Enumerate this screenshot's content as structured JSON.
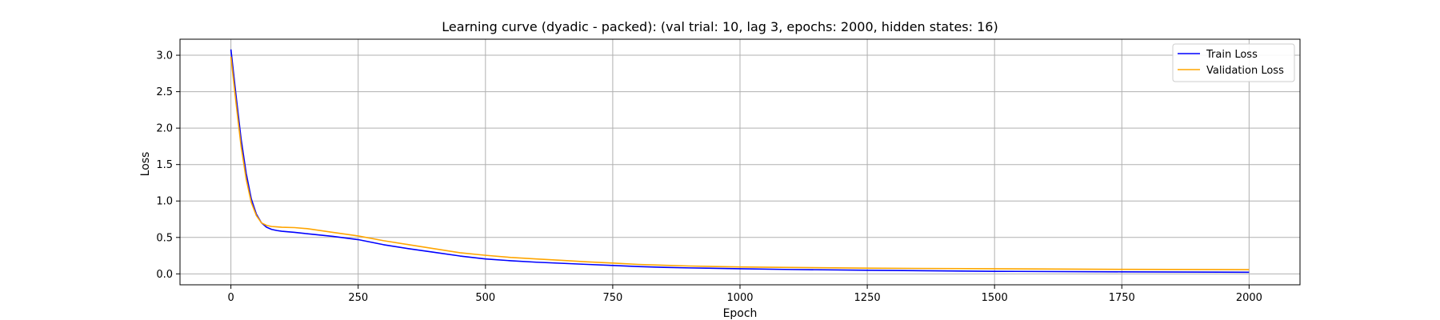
{
  "chart_data": {
    "type": "line",
    "title": "Learning curve (dyadic - packed): (val trial: 10, lag 3, epochs: 2000, hidden states: 16)",
    "xlabel": "Epoch",
    "ylabel": "Loss",
    "xlim": [
      -100,
      2100
    ],
    "ylim": [
      -0.15,
      3.22
    ],
    "xticks": [
      0,
      250,
      500,
      750,
      1000,
      1250,
      1500,
      1750,
      2000
    ],
    "yticks": [
      0.0,
      0.5,
      1.0,
      1.5,
      2.0,
      2.5,
      3.0
    ],
    "xtick_labels": [
      "0",
      "250",
      "500",
      "750",
      "1000",
      "1250",
      "1500",
      "1750",
      "2000"
    ],
    "ytick_labels": [
      "0.0",
      "0.5",
      "1.0",
      "1.5",
      "2.0",
      "2.5",
      "3.0"
    ],
    "grid": true,
    "legend_position": "top-right",
    "series": [
      {
        "name": "Train Loss",
        "color": "#0000ff",
        "x": [
          0,
          10,
          20,
          30,
          40,
          50,
          60,
          70,
          80,
          90,
          100,
          125,
          150,
          200,
          250,
          300,
          350,
          400,
          450,
          500,
          550,
          600,
          650,
          700,
          750,
          800,
          850,
          900,
          1000,
          1100,
          1250,
          1500,
          1750,
          2000
        ],
        "y": [
          3.08,
          2.45,
          1.85,
          1.38,
          1.03,
          0.82,
          0.7,
          0.64,
          0.61,
          0.595,
          0.585,
          0.57,
          0.55,
          0.515,
          0.47,
          0.4,
          0.345,
          0.295,
          0.245,
          0.205,
          0.18,
          0.16,
          0.145,
          0.13,
          0.115,
          0.1,
          0.09,
          0.082,
          0.07,
          0.06,
          0.05,
          0.035,
          0.028,
          0.022
        ]
      },
      {
        "name": "Validation Loss",
        "color": "#ffa500",
        "x": [
          0,
          10,
          20,
          30,
          40,
          50,
          60,
          70,
          80,
          90,
          100,
          125,
          150,
          200,
          250,
          300,
          350,
          400,
          450,
          500,
          550,
          600,
          650,
          700,
          750,
          800,
          850,
          900,
          1000,
          1100,
          1250,
          1500,
          1750,
          2000
        ],
        "y": [
          2.98,
          2.35,
          1.75,
          1.3,
          0.98,
          0.8,
          0.7,
          0.665,
          0.65,
          0.645,
          0.64,
          0.635,
          0.62,
          0.57,
          0.52,
          0.455,
          0.4,
          0.345,
          0.29,
          0.255,
          0.225,
          0.205,
          0.185,
          0.165,
          0.148,
          0.13,
          0.118,
          0.108,
          0.095,
          0.088,
          0.078,
          0.07,
          0.062,
          0.058
        ]
      }
    ]
  }
}
